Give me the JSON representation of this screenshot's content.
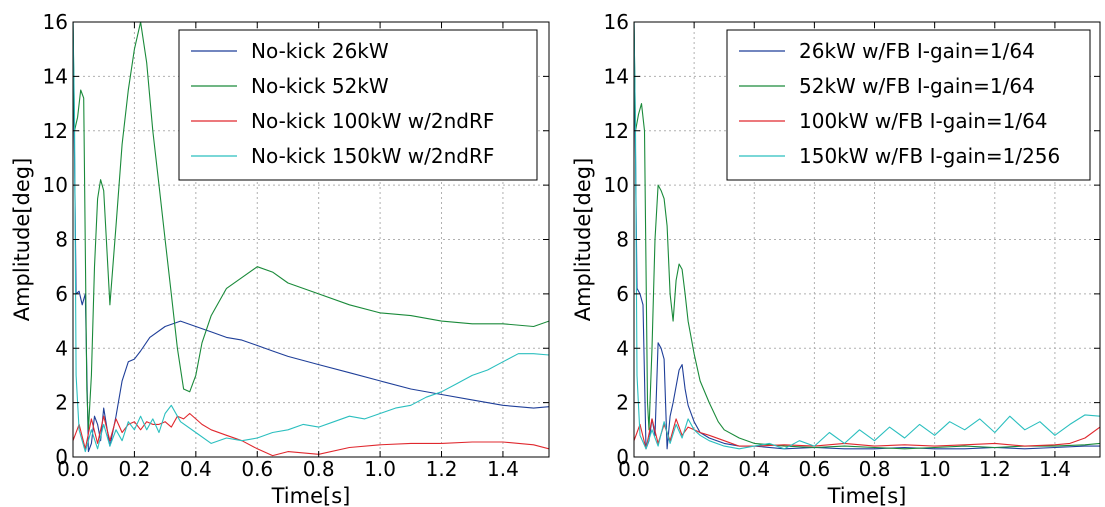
{
  "chart_data": [
    {
      "type": "line",
      "xlabel": "Time[s]",
      "ylabel": "Amplitude[deg]",
      "xlim": [
        0,
        1.55
      ],
      "ylim": [
        0,
        16
      ],
      "xticks": [
        0.0,
        0.2,
        0.4,
        0.6,
        0.8,
        1.0,
        1.2,
        1.4
      ],
      "xtick_labels": [
        "0.0",
        "0.2",
        "0.4",
        "0.6",
        "0.8",
        "1.0",
        "1.2",
        "1.4"
      ],
      "yticks": [
        0,
        2,
        4,
        6,
        8,
        10,
        12,
        14,
        16
      ],
      "ytick_labels": [
        "0",
        "2",
        "4",
        "6",
        "8",
        "10",
        "12",
        "14",
        "16"
      ],
      "grid": true,
      "legend_position": "top-right",
      "series": [
        {
          "name": "No-kick 26kW",
          "color": "#1f3f99",
          "x": [
            0,
            0.01,
            0.02,
            0.03,
            0.04,
            0.05,
            0.06,
            0.07,
            0.08,
            0.09,
            0.1,
            0.12,
            0.14,
            0.16,
            0.18,
            0.2,
            0.22,
            0.25,
            0.3,
            0.35,
            0.4,
            0.45,
            0.5,
            0.55,
            0.6,
            0.65,
            0.7,
            0.8,
            0.9,
            1.0,
            1.1,
            1.2,
            1.3,
            1.4,
            1.5,
            1.55
          ],
          "y": [
            16,
            6.0,
            6.1,
            5.6,
            6.0,
            0.2,
            0.5,
            1.5,
            1.2,
            0.6,
            1.8,
            0.4,
            1.5,
            2.8,
            3.5,
            3.6,
            3.9,
            4.4,
            4.8,
            5.0,
            4.8,
            4.6,
            4.4,
            4.3,
            4.1,
            3.9,
            3.7,
            3.4,
            3.1,
            2.8,
            2.5,
            2.3,
            2.1,
            1.9,
            1.8,
            1.85
          ]
        },
        {
          "name": "No-kick 52kW",
          "color": "#1a8a3a",
          "x": [
            0,
            0.005,
            0.015,
            0.025,
            0.035,
            0.045,
            0.05,
            0.06,
            0.07,
            0.08,
            0.09,
            0.1,
            0.12,
            0.14,
            0.16,
            0.18,
            0.2,
            0.22,
            0.24,
            0.26,
            0.28,
            0.3,
            0.32,
            0.34,
            0.36,
            0.38,
            0.4,
            0.42,
            0.45,
            0.5,
            0.55,
            0.6,
            0.65,
            0.7,
            0.8,
            0.9,
            1.0,
            1.1,
            1.2,
            1.3,
            1.4,
            1.5,
            1.55
          ],
          "y": [
            16,
            12.0,
            12.5,
            13.5,
            13.2,
            2.5,
            1.0,
            3.0,
            7.0,
            9.5,
            10.2,
            9.8,
            5.6,
            8.5,
            11.5,
            13.5,
            15.0,
            16.0,
            14.5,
            12.0,
            10.0,
            8.0,
            6.0,
            4.0,
            2.5,
            2.4,
            3.0,
            4.2,
            5.2,
            6.2,
            6.6,
            7.0,
            6.8,
            6.4,
            6.0,
            5.6,
            5.3,
            5.2,
            5.0,
            4.9,
            4.9,
            4.8,
            5.0
          ]
        },
        {
          "name": "No-kick 100kW w/2ndRF",
          "color": "#e0282e",
          "x": [
            0,
            0.02,
            0.04,
            0.06,
            0.08,
            0.1,
            0.12,
            0.14,
            0.16,
            0.18,
            0.2,
            0.22,
            0.24,
            0.26,
            0.28,
            0.3,
            0.32,
            0.34,
            0.36,
            0.38,
            0.4,
            0.42,
            0.45,
            0.5,
            0.55,
            0.6,
            0.65,
            0.7,
            0.8,
            0.9,
            1.0,
            1.1,
            1.2,
            1.3,
            1.4,
            1.5,
            1.55
          ],
          "y": [
            0.6,
            1.2,
            0.3,
            1.4,
            0.5,
            1.5,
            0.6,
            1.4,
            0.9,
            1.2,
            1.3,
            1.0,
            1.3,
            1.2,
            1.2,
            1.3,
            1.1,
            1.5,
            1.4,
            1.6,
            1.4,
            1.2,
            1.0,
            0.8,
            0.6,
            0.3,
            0.05,
            0.2,
            0.1,
            0.35,
            0.45,
            0.5,
            0.5,
            0.55,
            0.55,
            0.45,
            0.3
          ]
        },
        {
          "name": "No-kick 150kW w/2ndRF",
          "color": "#2bbfbf",
          "x": [
            0,
            0.005,
            0.01,
            0.02,
            0.04,
            0.06,
            0.08,
            0.1,
            0.12,
            0.14,
            0.16,
            0.18,
            0.2,
            0.22,
            0.24,
            0.26,
            0.28,
            0.3,
            0.32,
            0.35,
            0.4,
            0.45,
            0.5,
            0.55,
            0.6,
            0.65,
            0.7,
            0.75,
            0.8,
            0.85,
            0.9,
            0.95,
            1.0,
            1.05,
            1.1,
            1.15,
            1.2,
            1.25,
            1.3,
            1.35,
            1.4,
            1.45,
            1.5,
            1.55
          ],
          "y": [
            16,
            12.5,
            3.0,
            1.0,
            0.2,
            1.0,
            0.3,
            1.2,
            0.4,
            1.0,
            0.6,
            1.3,
            1.0,
            1.5,
            1.0,
            1.4,
            0.9,
            1.6,
            1.9,
            1.3,
            0.9,
            0.5,
            0.7,
            0.6,
            0.7,
            0.9,
            1.0,
            1.2,
            1.1,
            1.3,
            1.5,
            1.4,
            1.6,
            1.8,
            1.9,
            2.2,
            2.4,
            2.7,
            3.0,
            3.2,
            3.5,
            3.8,
            3.8,
            3.75
          ]
        }
      ]
    },
    {
      "type": "line",
      "xlabel": "Time[s]",
      "ylabel": "Amplitude[deg]",
      "xlim": [
        0,
        1.55
      ],
      "ylim": [
        0,
        16
      ],
      "xticks": [
        0.0,
        0.2,
        0.4,
        0.6,
        0.8,
        1.0,
        1.2,
        1.4
      ],
      "xtick_labels": [
        "0.0",
        "0.2",
        "0.4",
        "0.6",
        "0.8",
        "1.0",
        "1.2",
        "1.4"
      ],
      "yticks": [
        0,
        2,
        4,
        6,
        8,
        10,
        12,
        14,
        16
      ],
      "ytick_labels": [
        "0",
        "2",
        "4",
        "6",
        "8",
        "10",
        "12",
        "14",
        "16"
      ],
      "grid": true,
      "legend_position": "top-right",
      "series": [
        {
          "name": "26kW w/FB I-gain=1/64",
          "color": "#1f3f99",
          "x": [
            0,
            0.01,
            0.02,
            0.03,
            0.04,
            0.05,
            0.06,
            0.07,
            0.08,
            0.09,
            0.1,
            0.11,
            0.12,
            0.13,
            0.14,
            0.15,
            0.16,
            0.17,
            0.18,
            0.2,
            0.22,
            0.25,
            0.3,
            0.35,
            0.4,
            0.5,
            0.6,
            0.7,
            0.8,
            0.9,
            1.0,
            1.1,
            1.2,
            1.3,
            1.4,
            1.5,
            1.55
          ],
          "y": [
            16,
            6.2,
            6.0,
            5.6,
            0.3,
            0.6,
            1.4,
            0.8,
            4.2,
            4.0,
            3.6,
            0.3,
            1.5,
            2.0,
            2.6,
            3.2,
            3.4,
            2.5,
            1.9,
            1.3,
            0.9,
            0.7,
            0.5,
            0.4,
            0.4,
            0.3,
            0.35,
            0.3,
            0.3,
            0.35,
            0.3,
            0.3,
            0.35,
            0.3,
            0.35,
            0.4,
            0.4
          ]
        },
        {
          "name": "52kW w/FB I-gain=1/64",
          "color": "#1a8a3a",
          "x": [
            0,
            0.005,
            0.015,
            0.025,
            0.035,
            0.045,
            0.05,
            0.06,
            0.07,
            0.08,
            0.09,
            0.1,
            0.11,
            0.12,
            0.13,
            0.14,
            0.15,
            0.16,
            0.17,
            0.18,
            0.2,
            0.22,
            0.25,
            0.28,
            0.3,
            0.35,
            0.4,
            0.5,
            0.6,
            0.7,
            0.8,
            0.9,
            1.0,
            1.1,
            1.2,
            1.3,
            1.4,
            1.5,
            1.55
          ],
          "y": [
            16,
            12.0,
            12.6,
            13.0,
            12.0,
            2.0,
            1.0,
            4.0,
            8.0,
            10.0,
            9.8,
            9.5,
            8.5,
            6.0,
            5.0,
            6.5,
            7.1,
            6.9,
            6.0,
            5.0,
            3.8,
            2.8,
            2.0,
            1.3,
            1.0,
            0.7,
            0.5,
            0.4,
            0.35,
            0.4,
            0.35,
            0.3,
            0.35,
            0.4,
            0.35,
            0.4,
            0.4,
            0.45,
            0.5
          ]
        },
        {
          "name": "100kW w/FB I-gain=1/64",
          "color": "#e0282e",
          "x": [
            0,
            0.02,
            0.04,
            0.06,
            0.08,
            0.1,
            0.12,
            0.14,
            0.16,
            0.18,
            0.2,
            0.22,
            0.25,
            0.3,
            0.35,
            0.4,
            0.5,
            0.6,
            0.7,
            0.8,
            0.9,
            1.0,
            1.1,
            1.2,
            1.3,
            1.4,
            1.45,
            1.5,
            1.55
          ],
          "y": [
            0.6,
            1.2,
            0.3,
            1.4,
            0.5,
            1.2,
            0.6,
            1.4,
            0.8,
            1.1,
            1.0,
            0.9,
            0.8,
            0.6,
            0.4,
            0.4,
            0.45,
            0.4,
            0.5,
            0.4,
            0.45,
            0.4,
            0.45,
            0.5,
            0.4,
            0.45,
            0.5,
            0.7,
            1.1
          ]
        },
        {
          "name": "150kW w/FB I-gain=1/256",
          "color": "#2bbfbf",
          "x": [
            0,
            0.005,
            0.01,
            0.02,
            0.04,
            0.06,
            0.08,
            0.1,
            0.12,
            0.14,
            0.16,
            0.18,
            0.2,
            0.22,
            0.25,
            0.3,
            0.35,
            0.4,
            0.45,
            0.5,
            0.55,
            0.6,
            0.65,
            0.7,
            0.75,
            0.8,
            0.85,
            0.9,
            0.95,
            1.0,
            1.05,
            1.1,
            1.15,
            1.2,
            1.25,
            1.3,
            1.35,
            1.4,
            1.45,
            1.5,
            1.55
          ],
          "y": [
            16,
            12.0,
            3.0,
            0.8,
            0.3,
            1.0,
            0.4,
            1.3,
            0.5,
            1.2,
            0.7,
            1.4,
            1.0,
            0.8,
            0.6,
            0.4,
            0.3,
            0.4,
            0.5,
            0.3,
            0.6,
            0.4,
            0.9,
            0.5,
            1.0,
            0.6,
            1.1,
            0.7,
            1.2,
            0.8,
            1.3,
            1.0,
            1.4,
            0.9,
            1.5,
            1.0,
            1.3,
            0.8,
            1.2,
            1.55,
            1.5
          ]
        }
      ]
    }
  ]
}
